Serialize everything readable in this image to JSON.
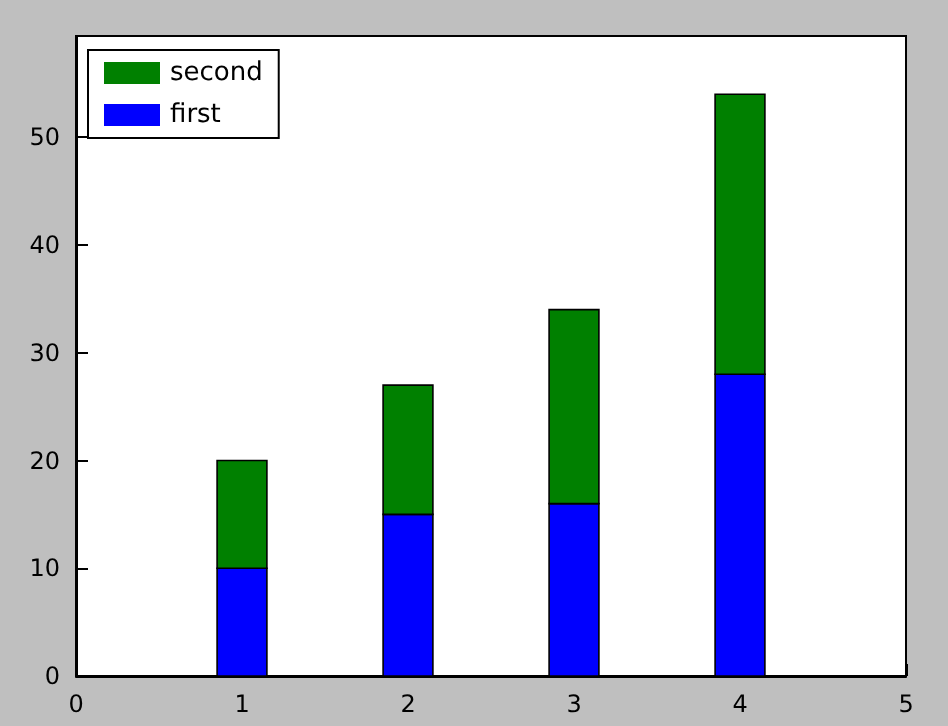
{
  "chart_data": {
    "type": "bar",
    "stacked": true,
    "x": [
      1,
      2,
      3,
      4
    ],
    "series": [
      {
        "name": "first",
        "color": "#0000ff",
        "values": [
          10,
          15,
          16,
          28
        ]
      },
      {
        "name": "second",
        "color": "#008000",
        "values": [
          10,
          12,
          18,
          26
        ]
      }
    ],
    "xlim": [
      0,
      5
    ],
    "xticks": [
      0,
      1,
      2,
      3,
      4,
      5
    ],
    "ylim": [
      0,
      59.4
    ],
    "yticks": [
      0,
      10,
      20,
      30,
      40,
      50
    ],
    "grid": false,
    "legend": "top left"
  }
}
